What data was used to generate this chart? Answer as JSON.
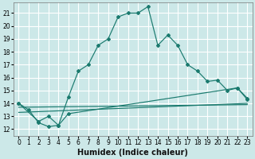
{
  "xlabel": "Humidex (Indice chaleur)",
  "bg_color": "#cce8e8",
  "grid_color": "#ffffff",
  "line_color": "#1a7a6e",
  "xlim": [
    -0.5,
    23.5
  ],
  "ylim": [
    11.5,
    21.8
  ],
  "xticks": [
    0,
    1,
    2,
    3,
    4,
    5,
    6,
    7,
    8,
    9,
    10,
    11,
    12,
    13,
    14,
    15,
    16,
    17,
    18,
    19,
    20,
    21,
    22,
    23
  ],
  "yticks": [
    12,
    13,
    14,
    15,
    16,
    17,
    18,
    19,
    20,
    21
  ],
  "line1_x": [
    0,
    1,
    2,
    3,
    4,
    5,
    6,
    7,
    8,
    9,
    10,
    11,
    12,
    13,
    14,
    15,
    16,
    17,
    18,
    19,
    20,
    21,
    22,
    23
  ],
  "line1_y": [
    14.0,
    13.5,
    12.5,
    12.2,
    12.3,
    14.5,
    16.5,
    17.0,
    18.5,
    19.0,
    20.7,
    21.0,
    21.0,
    21.5,
    18.5,
    19.3,
    18.5,
    17.0,
    16.5,
    15.7,
    15.8,
    15.0,
    15.2,
    14.3
  ],
  "line2_x": [
    0,
    2,
    3,
    4,
    5,
    22,
    23
  ],
  "line2_y": [
    14.0,
    12.6,
    13.0,
    12.3,
    13.2,
    15.2,
    14.4
  ],
  "line3_x": [
    0,
    23
  ],
  "line3_y": [
    13.3,
    14.0
  ],
  "line4_x": [
    0,
    23
  ],
  "line4_y": [
    13.7,
    13.9
  ],
  "tick_fontsize": 5.5,
  "xlabel_fontsize": 7.0
}
